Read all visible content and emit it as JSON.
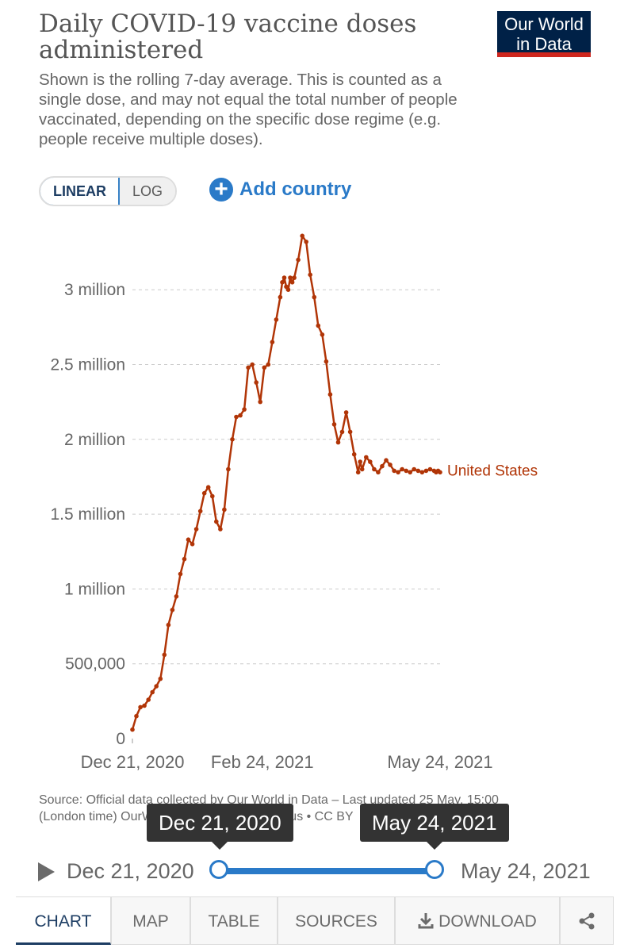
{
  "header": {
    "title": "Daily COVID-19 vaccine doses administered",
    "subtitle": "Shown is the rolling 7-day average. This is counted as a single dose, and may not equal the total number of people vaccinated, depending on the specific dose regime (e.g. people receive multiple doses).",
    "logo": "Our World in Data"
  },
  "controls": {
    "linear_label": "LINEAR",
    "log_label": "LOG",
    "add_country_label": "Add country",
    "plus_icon": "plus-circle-icon"
  },
  "chart_data": {
    "type": "line",
    "title": "Daily COVID-19 vaccine doses administered",
    "ylim": [
      0,
      3400000
    ],
    "yticks": [
      0,
      500000,
      1000000,
      1500000,
      2000000,
      2500000,
      3000000
    ],
    "ytick_labels": [
      "0",
      "500,000",
      "1 million",
      "1.5 million",
      "2 million",
      "2.5 million",
      "3 million"
    ],
    "xlim": [
      "2020-12-21",
      "2021-05-24"
    ],
    "xtick_labels": [
      "Dec 21, 2020",
      "Feb 24, 2021",
      "May 24, 2021"
    ],
    "xtick_dates": [
      "2020-12-21",
      "2021-02-24",
      "2021-05-24"
    ],
    "grid": true,
    "series": [
      {
        "name": "United States",
        "color": "#b13507",
        "x": [
          "2020-12-21",
          "2020-12-23",
          "2020-12-25",
          "2020-12-27",
          "2020-12-29",
          "2020-12-31",
          "2021-01-02",
          "2021-01-04",
          "2021-01-06",
          "2021-01-08",
          "2021-01-10",
          "2021-01-12",
          "2021-01-14",
          "2021-01-16",
          "2021-01-18",
          "2021-01-20",
          "2021-01-22",
          "2021-01-24",
          "2021-01-26",
          "2021-01-28",
          "2021-01-30",
          "2021-02-01",
          "2021-02-03",
          "2021-02-05",
          "2021-02-07",
          "2021-02-09",
          "2021-02-11",
          "2021-02-13",
          "2021-02-15",
          "2021-02-17",
          "2021-02-19",
          "2021-02-21",
          "2021-02-23",
          "2021-02-25",
          "2021-02-27",
          "2021-03-01",
          "2021-03-03",
          "2021-03-05",
          "2021-03-06",
          "2021-03-07",
          "2021-03-08",
          "2021-03-09",
          "2021-03-10",
          "2021-03-11",
          "2021-03-12",
          "2021-03-14",
          "2021-03-16",
          "2021-03-18",
          "2021-03-20",
          "2021-03-22",
          "2021-03-24",
          "2021-03-26",
          "2021-03-28",
          "2021-03-30",
          "2021-04-01",
          "2021-04-03",
          "2021-04-05",
          "2021-04-07",
          "2021-04-09",
          "2021-04-11",
          "2021-04-13",
          "2021-04-14",
          "2021-04-15",
          "2021-04-17",
          "2021-04-19",
          "2021-04-21",
          "2021-04-23",
          "2021-04-25",
          "2021-04-27",
          "2021-04-29",
          "2021-05-01",
          "2021-05-03",
          "2021-05-05",
          "2021-05-07",
          "2021-05-09",
          "2021-05-11",
          "2021-05-13",
          "2021-05-15",
          "2021-05-17",
          "2021-05-19",
          "2021-05-21",
          "2021-05-22",
          "2021-05-23",
          "2021-05-24"
        ],
        "values": [
          60000,
          150000,
          210000,
          220000,
          260000,
          310000,
          350000,
          400000,
          560000,
          760000,
          860000,
          950000,
          1100000,
          1200000,
          1330000,
          1300000,
          1400000,
          1520000,
          1640000,
          1680000,
          1620000,
          1450000,
          1400000,
          1530000,
          1800000,
          2000000,
          2150000,
          2160000,
          2200000,
          2480000,
          2500000,
          2380000,
          2250000,
          2480000,
          2500000,
          2650000,
          2800000,
          2950000,
          3050000,
          3080000,
          3020000,
          3000000,
          3080000,
          3050000,
          3080000,
          3200000,
          3360000,
          3320000,
          3100000,
          2950000,
          2760000,
          2700000,
          2520000,
          2300000,
          2100000,
          1980000,
          2050000,
          2180000,
          2050000,
          1900000,
          1780000,
          1850000,
          1800000,
          1880000,
          1850000,
          1800000,
          1780000,
          1820000,
          1860000,
          1830000,
          1790000,
          1780000,
          1800000,
          1790000,
          1780000,
          1800000,
          1790000,
          1780000,
          1790000,
          1800000,
          1790000,
          1780000,
          1790000,
          1780000
        ]
      }
    ]
  },
  "source": {
    "text": "Source: Official data collected by Our World in Data – Last updated 25 May, 15:00 (London time) OurWorldInData.org/coronavirus • CC BY"
  },
  "timeline": {
    "start_label": "Dec 21, 2020",
    "end_label": "May 24, 2021",
    "start_tooltip": "Dec 21, 2020",
    "end_tooltip": "May 24, 2021",
    "play_icon": "play-icon"
  },
  "tabs": [
    {
      "label": "CHART"
    },
    {
      "label": "MAP"
    },
    {
      "label": "TABLE"
    },
    {
      "label": "SOURCES"
    },
    {
      "label": "DOWNLOAD",
      "icon": "download-icon"
    },
    {
      "label": "",
      "icon": "share-icon"
    }
  ]
}
